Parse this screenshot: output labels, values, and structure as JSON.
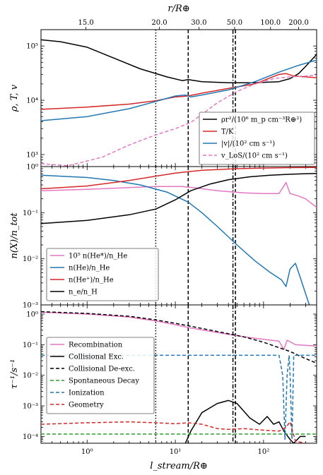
{
  "figure": {
    "top_axis_label": "r/R⊕",
    "bottom_axis_label": "l_stream/R⊕"
  },
  "chart_data": [
    {
      "type": "line",
      "panel": "top",
      "ylabel": "ρ, T, v",
      "xscale": "log",
      "yscale": "log",
      "xlim": [
        0.3,
        400
      ],
      "ylim": [
        600,
        200000
      ],
      "top_xlabel": "r/R⊕",
      "top_ticks": [
        {
          "l": 0.97,
          "label": "15.0"
        },
        {
          "l": 6.6,
          "label": "20.0"
        },
        {
          "l": 18.5,
          "label": "30.0"
        },
        {
          "l": 47,
          "label": "50.0"
        },
        {
          "l": 120,
          "label": "100.0"
        },
        {
          "l": 250,
          "label": "200.0"
        }
      ],
      "y_ticks": [
        {
          "v": 1000,
          "label": "10³"
        },
        {
          "v": 10000,
          "label": "10⁴"
        },
        {
          "v": 100000,
          "label": "10⁵"
        }
      ],
      "legend_position": "lower-right",
      "series": [
        {
          "name": "ρr²/(10⁶ m_p cm⁻³R⊕²)",
          "color": "#000000",
          "dash": "solid",
          "points": [
            [
              0.3,
              130000
            ],
            [
              0.5,
              120000
            ],
            [
              1,
              95000
            ],
            [
              2,
              60000
            ],
            [
              4,
              38000
            ],
            [
              8,
              27000
            ],
            [
              12,
              23000
            ],
            [
              14,
              24000
            ],
            [
              20,
              22000
            ],
            [
              40,
              21000
            ],
            [
              80,
              21000
            ],
            [
              150,
              22000
            ],
            [
              200,
              25000
            ],
            [
              250,
              31000
            ],
            [
              300,
              42000
            ],
            [
              400,
              70000
            ]
          ]
        },
        {
          "name": "T/K",
          "color": "#d62728",
          "dash": "solid",
          "points": [
            [
              0.3,
              6800
            ],
            [
              1,
              7500
            ],
            [
              3,
              8500
            ],
            [
              6,
              9800
            ],
            [
              10,
              11500
            ],
            [
              14,
              12000
            ],
            [
              20,
              13500
            ],
            [
              40,
              16500
            ],
            [
              80,
              20000
            ],
            [
              120,
              26000
            ],
            [
              150,
              30000
            ],
            [
              180,
              31000
            ],
            [
              220,
              28000
            ],
            [
              300,
              27000
            ],
            [
              400,
              26000
            ]
          ]
        },
        {
          "name": "|v|/(10² cm s⁻¹)",
          "color": "#1f77b4",
          "dash": "solid",
          "points": [
            [
              0.3,
              4200
            ],
            [
              1,
              5000
            ],
            [
              3,
              7000
            ],
            [
              6,
              9500
            ],
            [
              10,
              12000
            ],
            [
              13,
              12500
            ],
            [
              15,
              11500
            ],
            [
              20,
              12500
            ],
            [
              40,
              15500
            ],
            [
              80,
              22000
            ],
            [
              150,
              33000
            ],
            [
              250,
              44000
            ],
            [
              400,
              55000
            ]
          ]
        },
        {
          "name": "v_LoS/(10² cm s⁻¹)",
          "color": "#e377c2",
          "dash": "dashed",
          "points": [
            [
              0.3,
              680
            ],
            [
              0.6,
              620
            ],
            [
              1,
              760
            ],
            [
              1.5,
              900
            ],
            [
              3,
              1500
            ],
            [
              6,
              2300
            ],
            [
              10,
              3000
            ],
            [
              15,
              3900
            ],
            [
              20,
              5500
            ],
            [
              30,
              9000
            ],
            [
              50,
              14500
            ],
            [
              80,
              20000
            ],
            [
              130,
              25000
            ],
            [
              200,
              27000
            ],
            [
              300,
              28000
            ],
            [
              400,
              29000
            ]
          ]
        }
      ],
      "vlines": [
        {
          "x": 6.0,
          "style": "dotted"
        },
        {
          "x": 14.0,
          "style": "dashed"
        },
        {
          "x": 45.0,
          "style": "dashdot"
        },
        {
          "x": 48.0,
          "style": "dashed"
        }
      ]
    },
    {
      "type": "line",
      "panel": "middle",
      "ylabel": "n(X)/n_tot",
      "xscale": "log",
      "yscale": "log",
      "xlim": [
        0.3,
        400
      ],
      "ylim": [
        0.001,
        1
      ],
      "y_ticks": [
        {
          "v": 0.001,
          "label": "10⁻³"
        },
        {
          "v": 0.01,
          "label": "10⁻²"
        },
        {
          "v": 0.1,
          "label": "10⁻¹"
        },
        {
          "v": 1,
          "label": "10⁰"
        }
      ],
      "legend_position": "lower-left",
      "series": [
        {
          "name": "10⁵ n(He*)/n_He",
          "color": "#e377c2",
          "dash": "solid",
          "points": [
            [
              0.3,
              0.3
            ],
            [
              1,
              0.32
            ],
            [
              3,
              0.35
            ],
            [
              6,
              0.37
            ],
            [
              12,
              0.37
            ],
            [
              18,
              0.34
            ],
            [
              30,
              0.3
            ],
            [
              60,
              0.27
            ],
            [
              100,
              0.26
            ],
            [
              150,
              0.26
            ],
            [
              180,
              0.45
            ],
            [
              200,
              0.26
            ],
            [
              250,
              0.23
            ],
            [
              300,
              0.2
            ],
            [
              400,
              0.13
            ]
          ]
        },
        {
          "name": "n(He)/n_He",
          "color": "#1f77b4",
          "dash": "solid",
          "points": [
            [
              0.3,
              0.65
            ],
            [
              1,
              0.58
            ],
            [
              2,
              0.5
            ],
            [
              4,
              0.4
            ],
            [
              8,
              0.28
            ],
            [
              14,
              0.17
            ],
            [
              20,
              0.1
            ],
            [
              30,
              0.05
            ],
            [
              50,
              0.02
            ],
            [
              80,
              0.009
            ],
            [
              120,
              0.005
            ],
            [
              160,
              0.0035
            ],
            [
              180,
              0.0025
            ],
            [
              200,
              0.006
            ],
            [
              230,
              0.008
            ],
            [
              260,
              0.004
            ],
            [
              330,
              0.001
            ]
          ]
        },
        {
          "name": "n(He⁺)/n_He",
          "color": "#d62728",
          "dash": "solid",
          "points": [
            [
              0.3,
              0.33
            ],
            [
              1,
              0.38
            ],
            [
              3,
              0.5
            ],
            [
              6,
              0.62
            ],
            [
              10,
              0.72
            ],
            [
              20,
              0.83
            ],
            [
              50,
              0.9
            ],
            [
              100,
              0.93
            ],
            [
              200,
              0.95
            ],
            [
              400,
              0.96
            ]
          ]
        },
        {
          "name": "n_e/n_H",
          "color": "#000000",
          "dash": "solid",
          "points": [
            [
              0.3,
              0.058
            ],
            [
              1,
              0.068
            ],
            [
              3,
              0.09
            ],
            [
              6,
              0.12
            ],
            [
              10,
              0.19
            ],
            [
              15,
              0.3
            ],
            [
              25,
              0.42
            ],
            [
              40,
              0.52
            ],
            [
              70,
              0.6
            ],
            [
              120,
              0.65
            ],
            [
              200,
              0.68
            ],
            [
              300,
              0.7
            ],
            [
              400,
              0.71
            ]
          ]
        }
      ],
      "vlines": [
        {
          "x": 6.0,
          "style": "dotted"
        },
        {
          "x": 14.0,
          "style": "dashed"
        },
        {
          "x": 45.0,
          "style": "dashdot"
        },
        {
          "x": 48.0,
          "style": "dashed"
        }
      ]
    },
    {
      "type": "line",
      "panel": "bottom",
      "ylabel": "τ⁻¹/s⁻¹",
      "xlabel": "l_stream/R⊕",
      "xscale": "log",
      "yscale": "log",
      "xlim": [
        0.3,
        400
      ],
      "ylim": [
        6e-05,
        2
      ],
      "x_ticks": [
        {
          "v": 1,
          "label": "10⁰"
        },
        {
          "v": 10,
          "label": "10¹"
        },
        {
          "v": 100,
          "label": "10²"
        }
      ],
      "y_ticks": [
        {
          "v": 0.0001,
          "label": "10⁻⁴"
        },
        {
          "v": 0.001,
          "label": "10⁻³"
        },
        {
          "v": 0.01,
          "label": "10⁻²"
        },
        {
          "v": 0.1,
          "label": "10⁻¹"
        },
        {
          "v": 1,
          "label": "10⁰"
        }
      ],
      "legend_position": "lower-left",
      "series": [
        {
          "name": "Recombination",
          "color": "#e377c2",
          "dash": "solid",
          "points": [
            [
              0.3,
              1.15
            ],
            [
              1,
              1.0
            ],
            [
              3,
              0.8
            ],
            [
              6,
              0.6
            ],
            [
              10,
              0.45
            ],
            [
              15,
              0.35
            ],
            [
              30,
              0.25
            ],
            [
              60,
              0.18
            ],
            [
              100,
              0.15
            ],
            [
              150,
              0.13
            ],
            [
              170,
              0.07
            ],
            [
              185,
              0.14
            ],
            [
              230,
              0.1
            ],
            [
              300,
              0.095
            ],
            [
              400,
              0.09
            ]
          ]
        },
        {
          "name": "Collisional Exc.",
          "color": "#000000",
          "dash": "solid",
          "points": [
            [
              13,
              6e-05
            ],
            [
              15,
              0.00015
            ],
            [
              20,
              0.0006
            ],
            [
              30,
              0.0012
            ],
            [
              40,
              0.0015
            ],
            [
              50,
              0.0012
            ],
            [
              70,
              0.0004
            ],
            [
              90,
              0.00025
            ],
            [
              110,
              0.00045
            ],
            [
              130,
              0.00025
            ],
            [
              150,
              0.0003
            ],
            [
              170,
              0.00015
            ],
            [
              200,
              8e-05
            ],
            [
              220,
              6e-05
            ],
            [
              260,
              0.0001
            ],
            [
              300,
              0.0001
            ]
          ]
        },
        {
          "name": "Collisional De-exc.",
          "color": "#000000",
          "dash": "dashed",
          "points": [
            [
              0.3,
              1.2
            ],
            [
              1,
              1.05
            ],
            [
              3,
              0.85
            ],
            [
              6,
              0.65
            ],
            [
              10,
              0.5
            ],
            [
              15,
              0.4
            ],
            [
              30,
              0.27
            ],
            [
              60,
              0.18
            ],
            [
              100,
              0.12
            ],
            [
              150,
              0.08
            ],
            [
              200,
              0.06
            ],
            [
              300,
              0.035
            ],
            [
              400,
              0.025
            ]
          ]
        },
        {
          "name": "Spontaneous Decay",
          "color": "#2ca02c",
          "dash": "dashed",
          "points": [
            [
              0.3,
              0.00012
            ],
            [
              400,
              0.00012
            ]
          ]
        },
        {
          "name": "Ionization",
          "color": "#1f77b4",
          "dash": "dashed",
          "points": [
            [
              0.3,
              0.045
            ],
            [
              10,
              0.045
            ],
            [
              100,
              0.045
            ],
            [
              150,
              0.045
            ],
            [
              165,
              0.01
            ],
            [
              175,
              8e-05
            ],
            [
              185,
              0.01
            ],
            [
              195,
              0.045
            ],
            [
              200,
              0.01
            ],
            [
              210,
              8e-05
            ],
            [
              220,
              0.045
            ],
            [
              400,
              0.045
            ]
          ]
        },
        {
          "name": "Geometry",
          "color": "#d62728",
          "dash": "dashed",
          "points": [
            [
              0.3,
              0.00025
            ],
            [
              1,
              0.00028
            ],
            [
              3,
              0.0003
            ],
            [
              6,
              0.00028
            ],
            [
              10,
              0.00026
            ],
            [
              14,
              0.00028
            ],
            [
              20,
              0.00025
            ],
            [
              30,
              0.00018
            ],
            [
              40,
              0.00017
            ],
            [
              60,
              0.00018
            ],
            [
              100,
              0.00016
            ],
            [
              150,
              0.00015
            ],
            [
              180,
              0.0002
            ],
            [
              200,
              0.0003
            ],
            [
              230,
              7e-05
            ],
            [
              300,
              6e-05
            ]
          ]
        }
      ],
      "vlines": [
        {
          "x": 6.0,
          "style": "dotted"
        },
        {
          "x": 14.0,
          "style": "dashed"
        },
        {
          "x": 45.0,
          "style": "dashdot"
        },
        {
          "x": 48.0,
          "style": "dashed"
        }
      ]
    }
  ]
}
